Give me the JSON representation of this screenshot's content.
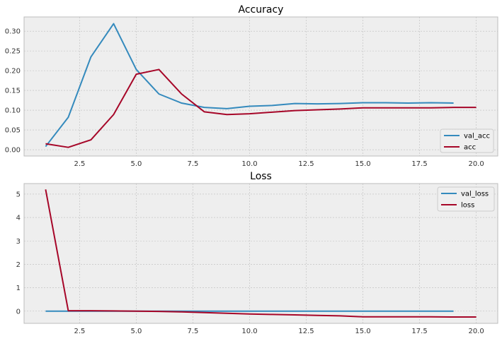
{
  "chart_data": [
    {
      "type": "line",
      "title": "Accuracy",
      "xlabel": "",
      "ylabel": "",
      "xlim": [
        0.05,
        20.95
      ],
      "ylim": [
        -0.016,
        0.336
      ],
      "xticks": [
        2.5,
        5.0,
        7.5,
        10.0,
        12.5,
        15.0,
        17.5,
        20.0
      ],
      "xtick_labels": [
        "2.5",
        "5.0",
        "7.5",
        "10.0",
        "12.5",
        "15.0",
        "17.5",
        "20.0"
      ],
      "yticks": [
        0.0,
        0.05,
        0.1,
        0.15,
        0.2,
        0.25,
        0.3
      ],
      "ytick_labels": [
        "0.00",
        "0.05",
        "0.10",
        "0.15",
        "0.20",
        "0.25",
        "0.30"
      ],
      "grid": true,
      "legend_position": "lower right",
      "series": [
        {
          "name": "val_acc",
          "color": "#348abd",
          "x": [
            1,
            2,
            3,
            4,
            5,
            6,
            7,
            8,
            9,
            10,
            11,
            12,
            13,
            14,
            15,
            16,
            17,
            18,
            19
          ],
          "y": [
            0.008,
            0.082,
            0.235,
            0.319,
            0.203,
            0.141,
            0.118,
            0.107,
            0.104,
            0.11,
            0.112,
            0.117,
            0.116,
            0.117,
            0.119,
            0.119,
            0.118,
            0.119,
            0.118
          ]
        },
        {
          "name": "acc",
          "color": "#a60628",
          "x": [
            1,
            2,
            3,
            4,
            5,
            6,
            7,
            8,
            9,
            10,
            11,
            12,
            13,
            14,
            15,
            16,
            17,
            18,
            19,
            20
          ],
          "y": [
            0.015,
            0.006,
            0.025,
            0.089,
            0.191,
            0.203,
            0.141,
            0.096,
            0.089,
            0.091,
            0.095,
            0.099,
            0.101,
            0.103,
            0.106,
            0.106,
            0.106,
            0.106,
            0.107,
            0.107
          ]
        }
      ]
    },
    {
      "type": "line",
      "title": "Loss",
      "xlabel": "",
      "ylabel": "",
      "xlim": [
        0.05,
        20.95
      ],
      "ylim": [
        -0.52,
        5.45
      ],
      "xticks": [
        2.5,
        5.0,
        7.5,
        10.0,
        12.5,
        15.0,
        17.5,
        20.0
      ],
      "xtick_labels": [
        "2.5",
        "5.0",
        "7.5",
        "10.0",
        "12.5",
        "15.0",
        "17.5",
        "20.0"
      ],
      "yticks": [
        0,
        1,
        2,
        3,
        4,
        5
      ],
      "ytick_labels": [
        "0",
        "1",
        "2",
        "3",
        "4",
        "5"
      ],
      "grid": true,
      "legend_position": "upper right",
      "series": [
        {
          "name": "val_loss",
          "color": "#348abd",
          "x": [
            1,
            2,
            3,
            4,
            5,
            6,
            7,
            8,
            9,
            10,
            11,
            12,
            13,
            14,
            15,
            16,
            17,
            18,
            19
          ],
          "y": [
            0.0,
            0.0,
            0.0,
            0.0,
            0.0,
            0.0,
            0.0,
            0.0,
            0.0,
            0.0,
            0.0,
            0.0,
            0.0,
            0.0,
            0.0,
            0.0,
            0.0,
            0.0,
            0.0
          ]
        },
        {
          "name": "loss",
          "color": "#a60628",
          "x": [
            1,
            2,
            3,
            4,
            5,
            6,
            7,
            8,
            9,
            10,
            11,
            12,
            13,
            14,
            15,
            16,
            17,
            18,
            19,
            20
          ],
          "y": [
            5.2,
            0.02,
            0.02,
            0.01,
            0.0,
            -0.01,
            -0.03,
            -0.06,
            -0.09,
            -0.12,
            -0.14,
            -0.16,
            -0.18,
            -0.2,
            -0.24,
            -0.24,
            -0.24,
            -0.24,
            -0.25,
            -0.25
          ]
        }
      ]
    }
  ],
  "colors": {
    "figure_background": "#ffffff",
    "axes_background": "#eeeeee",
    "grid": "#bcbcbc",
    "axes_edge": "#bcbcbc"
  }
}
